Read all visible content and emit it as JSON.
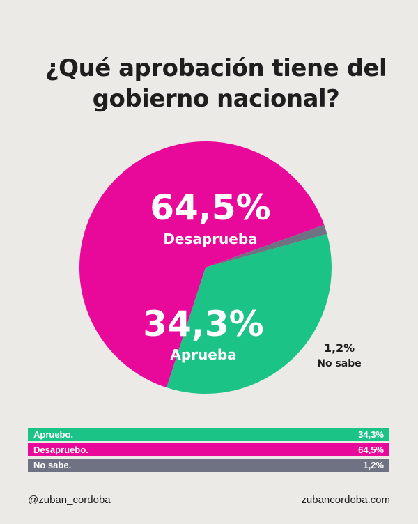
{
  "title": {
    "line1": "¿Qué aprobación tiene del",
    "line2": "gobierno nacional?"
  },
  "chart_data": {
    "type": "pie",
    "slices": [
      {
        "label": "Desaprueba",
        "value": 64.5,
        "value_label": "64,5%",
        "color": "#e8099a"
      },
      {
        "label": "Aprueba",
        "value": 34.3,
        "value_label": "34,3%",
        "color": "#1cc386"
      },
      {
        "label": "No sabe",
        "value": 1.2,
        "value_label": "1,2%",
        "color": "#6f7282"
      }
    ]
  },
  "legend": [
    {
      "label": "Apruebo.",
      "value": "34,3%",
      "color": "#1cc386"
    },
    {
      "label": "Desapruebo.",
      "value": "64,5%",
      "color": "#e8099a"
    },
    {
      "label": "No sabe.",
      "value": "1,2%",
      "color": "#6f7282"
    }
  ],
  "footer": {
    "handle": "@zuban_cordoba",
    "website": "zubancordoba.com"
  }
}
